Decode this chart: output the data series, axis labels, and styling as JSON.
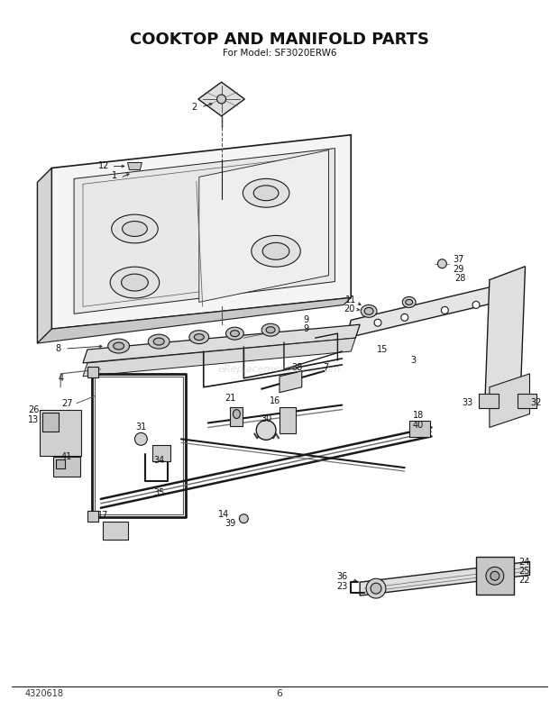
{
  "title": "COOKTOP AND MANIFOLD PARTS",
  "subtitle": "For Model: SF3020ERW6",
  "page_number": "6",
  "part_number": "4320618",
  "bg": "#ffffff",
  "figsize": [
    6.2,
    7.87
  ],
  "dpi": 100,
  "line_color": "#1a1a1a",
  "label_color": "#111111",
  "watermark": "eReplacementParts.com",
  "title_fontsize": 13,
  "subtitle_fontsize": 7.5
}
